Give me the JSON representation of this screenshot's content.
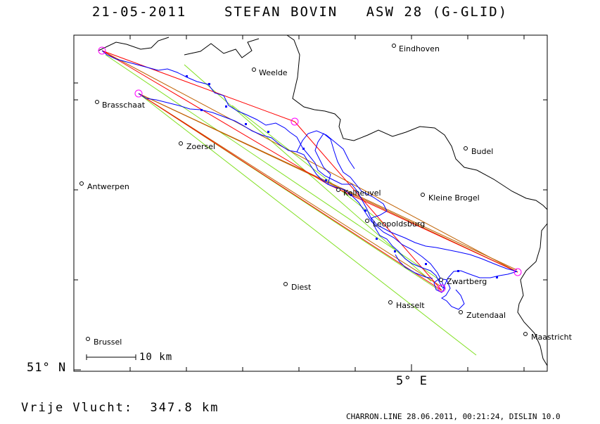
{
  "header": {
    "date": "21-05-2011",
    "pilot": "STEFAN BOVIN",
    "glider": "ASW 28 (G-GLID)"
  },
  "axes": {
    "lat_label": "51° N",
    "lon_label": "5° E"
  },
  "scale_bar": {
    "label": "10 km"
  },
  "footer": {
    "flight_label": "Vrije Vlucht:",
    "distance": "347.8 km",
    "credit": "CHARRON.LINE 28.06.2011, 00:21:24, DISLIN 10.0"
  },
  "towns": [
    {
      "name": "Eindhoven"
    },
    {
      "name": "Weelde"
    },
    {
      "name": "Brasschaat"
    },
    {
      "name": "Zoersel"
    },
    {
      "name": "Budel"
    },
    {
      "name": "Antwerpen"
    },
    {
      "name": "Kelheuvel"
    },
    {
      "name": "Kleine Brogel"
    },
    {
      "name": "Leopoldsburg"
    },
    {
      "name": "Zwartberg"
    },
    {
      "name": "Diest"
    },
    {
      "name": "Hasselt"
    },
    {
      "name": "Zutendaal"
    },
    {
      "name": "Maastricht"
    },
    {
      "name": "Brussel"
    }
  ],
  "colors": {
    "track": "#0000ff",
    "task_lines": "#ff0000",
    "optimized_lines": "#c06000",
    "sector_lines": "#80e020",
    "turnpoints": "#ff00ff"
  }
}
